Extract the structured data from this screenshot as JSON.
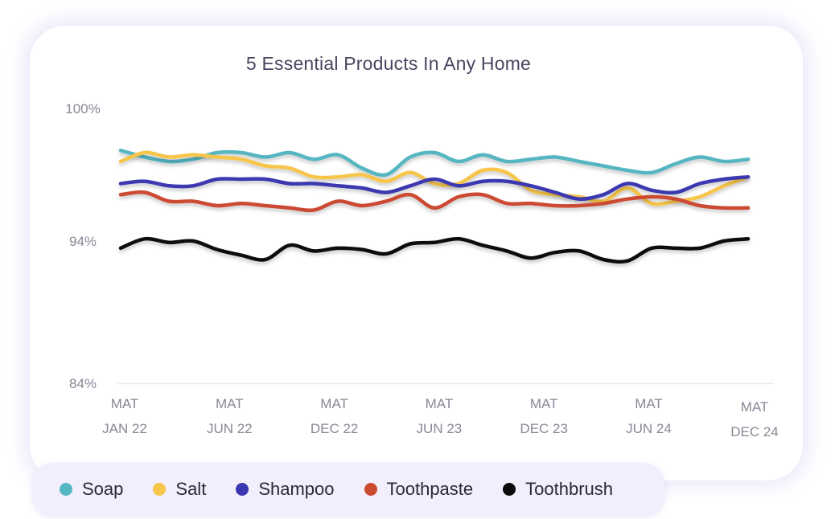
{
  "chart_data": {
    "type": "line",
    "title": "5 Essential Products In Any Home",
    "y_ticks": [
      "100%",
      "94%",
      "84%"
    ],
    "y_tick_values": [
      100,
      94,
      84
    ],
    "x_ticks": [
      [
        "MAT",
        "JAN 22"
      ],
      [
        "MAT",
        "JUN 22"
      ],
      [
        "MAT",
        "DEC 22"
      ],
      [
        "MAT",
        "JUN 23"
      ],
      [
        "MAT",
        "DEC 23"
      ],
      [
        "MAT",
        "JUN 24"
      ],
      [
        "MAT",
        "DEC 24"
      ]
    ],
    "ylim": [
      84,
      100
    ],
    "xlabel": "",
    "ylabel": "",
    "grid": false,
    "legend_position": "bottom",
    "series": [
      {
        "name": "Soap",
        "color": "#55b6c2",
        "values": [
          98.1,
          97.8,
          97.6,
          97.7,
          98.0,
          98.0,
          97.8,
          98.0,
          97.7,
          97.9,
          97.3,
          97.0,
          97.8,
          98.0,
          97.6,
          97.9,
          97.6,
          97.7,
          97.8,
          97.6,
          97.4,
          97.2,
          97.1,
          97.5,
          97.8,
          97.6,
          97.7
        ]
      },
      {
        "name": "Salt",
        "color": "#f7c548",
        "values": [
          97.6,
          98.0,
          97.8,
          97.9,
          97.8,
          97.7,
          97.4,
          97.3,
          96.9,
          96.9,
          97.0,
          96.7,
          97.1,
          96.6,
          96.6,
          97.2,
          97.1,
          96.3,
          96.1,
          96.0,
          95.8,
          96.4,
          95.7,
          95.8,
          96.0,
          96.5,
          96.9
        ]
      },
      {
        "name": "Shampoo",
        "color": "#3a37b0",
        "values": [
          96.6,
          96.7,
          96.5,
          96.5,
          96.8,
          96.8,
          96.8,
          96.6,
          96.6,
          96.5,
          96.4,
          96.2,
          96.5,
          96.8,
          96.5,
          96.7,
          96.7,
          96.5,
          96.2,
          95.9,
          96.1,
          96.6,
          96.3,
          96.2,
          96.6,
          96.8,
          96.9
        ]
      },
      {
        "name": "Toothpaste",
        "color": "#cc4a30",
        "values": [
          96.1,
          96.2,
          95.8,
          95.8,
          95.6,
          95.7,
          95.6,
          95.5,
          95.4,
          95.8,
          95.6,
          95.8,
          96.1,
          95.5,
          96.0,
          96.1,
          95.7,
          95.7,
          95.6,
          95.6,
          95.7,
          95.9,
          96.0,
          95.9,
          95.6,
          95.5,
          95.5
        ]
      },
      {
        "name": "Toothbrush",
        "color": "#0a0a0a",
        "values": [
          93.5,
          94.1,
          93.9,
          94.0,
          93.4,
          93.0,
          92.7,
          93.7,
          93.3,
          93.5,
          93.4,
          93.1,
          93.8,
          93.9,
          94.1,
          93.7,
          93.3,
          92.8,
          93.2,
          93.3,
          92.7,
          92.6,
          93.5,
          93.5,
          93.5,
          94.0,
          94.1
        ]
      }
    ]
  }
}
